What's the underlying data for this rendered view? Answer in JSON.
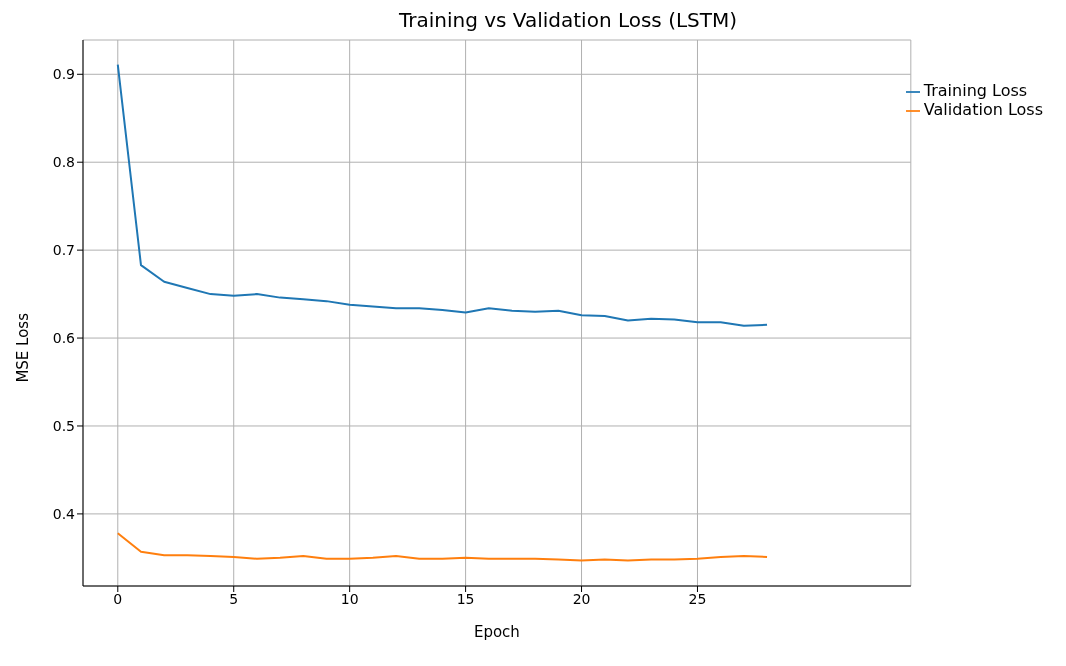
{
  "chart_data": {
    "type": "line",
    "title": "Training vs Validation Loss (LSTM)",
    "xlabel": "Epoch",
    "ylabel": "MSE Loss",
    "x": [
      0,
      1,
      2,
      3,
      4,
      5,
      6,
      7,
      8,
      9,
      10,
      11,
      12,
      13,
      14,
      15,
      16,
      17,
      18,
      19,
      20,
      21,
      22,
      23,
      24,
      25,
      26,
      27,
      28
    ],
    "series": [
      {
        "name": "Training Loss",
        "color": "#1f77b4",
        "values": [
          0.911,
          0.683,
          0.664,
          0.657,
          0.65,
          0.648,
          0.65,
          0.646,
          0.644,
          0.642,
          0.638,
          0.636,
          0.634,
          0.634,
          0.632,
          0.629,
          0.634,
          0.631,
          0.63,
          0.631,
          0.626,
          0.625,
          0.62,
          0.622,
          0.621,
          0.618,
          0.618,
          0.614,
          0.615
        ]
      },
      {
        "name": "Validation Loss",
        "color": "#ff7f0e",
        "values": [
          0.378,
          0.357,
          0.353,
          0.353,
          0.352,
          0.351,
          0.349,
          0.35,
          0.352,
          0.349,
          0.349,
          0.35,
          0.352,
          0.349,
          0.349,
          0.35,
          0.349,
          0.349,
          0.349,
          0.348,
          0.347,
          0.348,
          0.347,
          0.348,
          0.348,
          0.349,
          0.351,
          0.352,
          0.351
        ]
      }
    ],
    "xlim": [
      -1.5,
      34.2
    ],
    "xticks": [
      0,
      5,
      10,
      15,
      20,
      25
    ],
    "ylim": [
      0.318,
      0.939
    ],
    "yticks": [
      {
        "value": 0.4,
        "label": "0.4"
      },
      {
        "value": 0.5,
        "label": "0.5"
      },
      {
        "value": 0.6,
        "label": "0.6"
      },
      {
        "value": 0.7,
        "label": "0.7"
      },
      {
        "value": 0.8,
        "label": "0.8"
      },
      {
        "value": 0.9,
        "label": "0.9"
      }
    ],
    "grid": true,
    "legend": "top right",
    "marker": "none",
    "line_style": "solid"
  }
}
